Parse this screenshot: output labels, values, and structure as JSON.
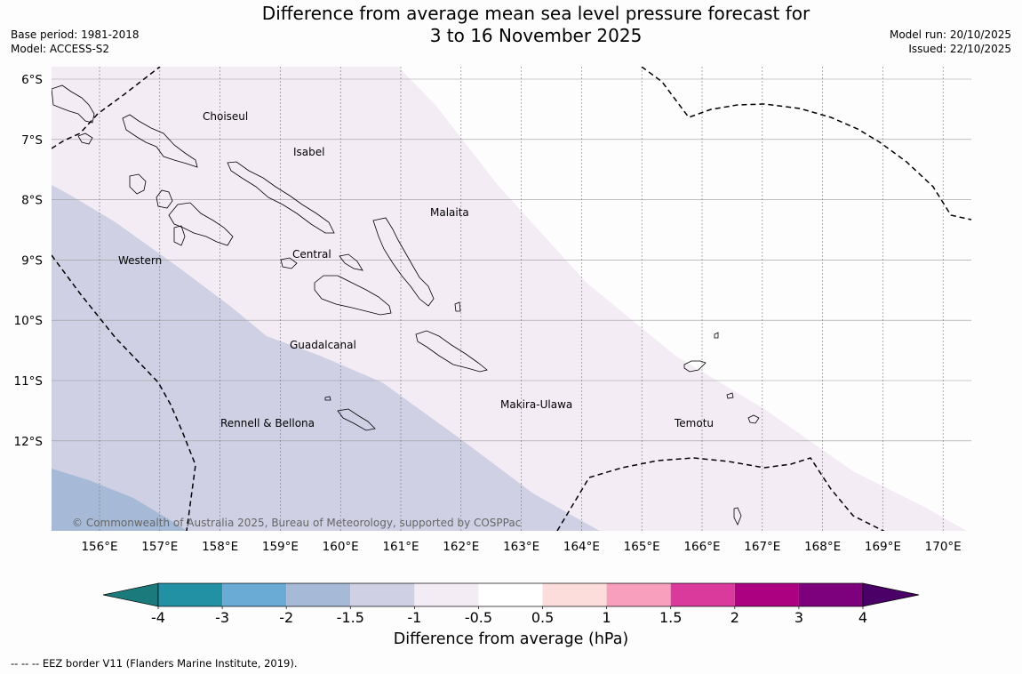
{
  "title": {
    "line1": "Difference from average mean sea level pressure forecast for",
    "line2": "3 to 16 November 2025"
  },
  "meta": {
    "base_period": "Base period: 1981-2018",
    "model": "Model: ACCESS-S2",
    "model_run": "Model run: 20/10/2025",
    "issued": "Issued: 22/10/2025"
  },
  "map": {
    "lat_labels": [
      "6°S",
      "7°S",
      "8°S",
      "9°S",
      "10°S",
      "11°S",
      "12°S"
    ],
    "lon_labels": [
      "156°E",
      "157°E",
      "158°E",
      "159°E",
      "160°E",
      "161°E",
      "162°E",
      "163°E",
      "164°E",
      "165°E",
      "166°E",
      "167°E",
      "168°E",
      "169°E",
      "170°E"
    ],
    "regions": {
      "choiseul": "Choiseul",
      "isabel": "Isabel",
      "malaita": "Malaita",
      "western": "Western",
      "central": "Central",
      "guadalcanal": "Guadalcanal",
      "makira": "Makira-Ulawa",
      "rennell": "Rennell & Bellona",
      "temotu": "Temotu"
    },
    "copyright": "© Commonwealth of Australia 2025, Bureau of Meteorology, supported by COSPPac",
    "colors": {
      "band_minus1_to_minus05": "#f3ecf4",
      "band_minus15_to_minus1": "#cfd0e4",
      "band_minus2_to_minus15": "#a6bad8",
      "eez_border": "#000000"
    }
  },
  "colorbar": {
    "ticks": [
      "-4",
      "-3",
      "-2",
      "-1.5",
      "-1",
      "-0.5",
      "0.5",
      "1",
      "1.5",
      "2",
      "3",
      "4"
    ],
    "colors": [
      "#1b7b7c",
      "#2391a4",
      "#6aabd5",
      "#a6bad8",
      "#cfd0e4",
      "#f3ecf4",
      "#ffffff",
      "#fddcdc",
      "#f79fbc",
      "#da3a9c",
      "#ac0180",
      "#7d017d",
      "#4a0066"
    ],
    "title": "Difference from average (hPa)"
  },
  "footnote": "--  --  -- EEZ border V11 (Flanders Marine Institute, 2019)."
}
